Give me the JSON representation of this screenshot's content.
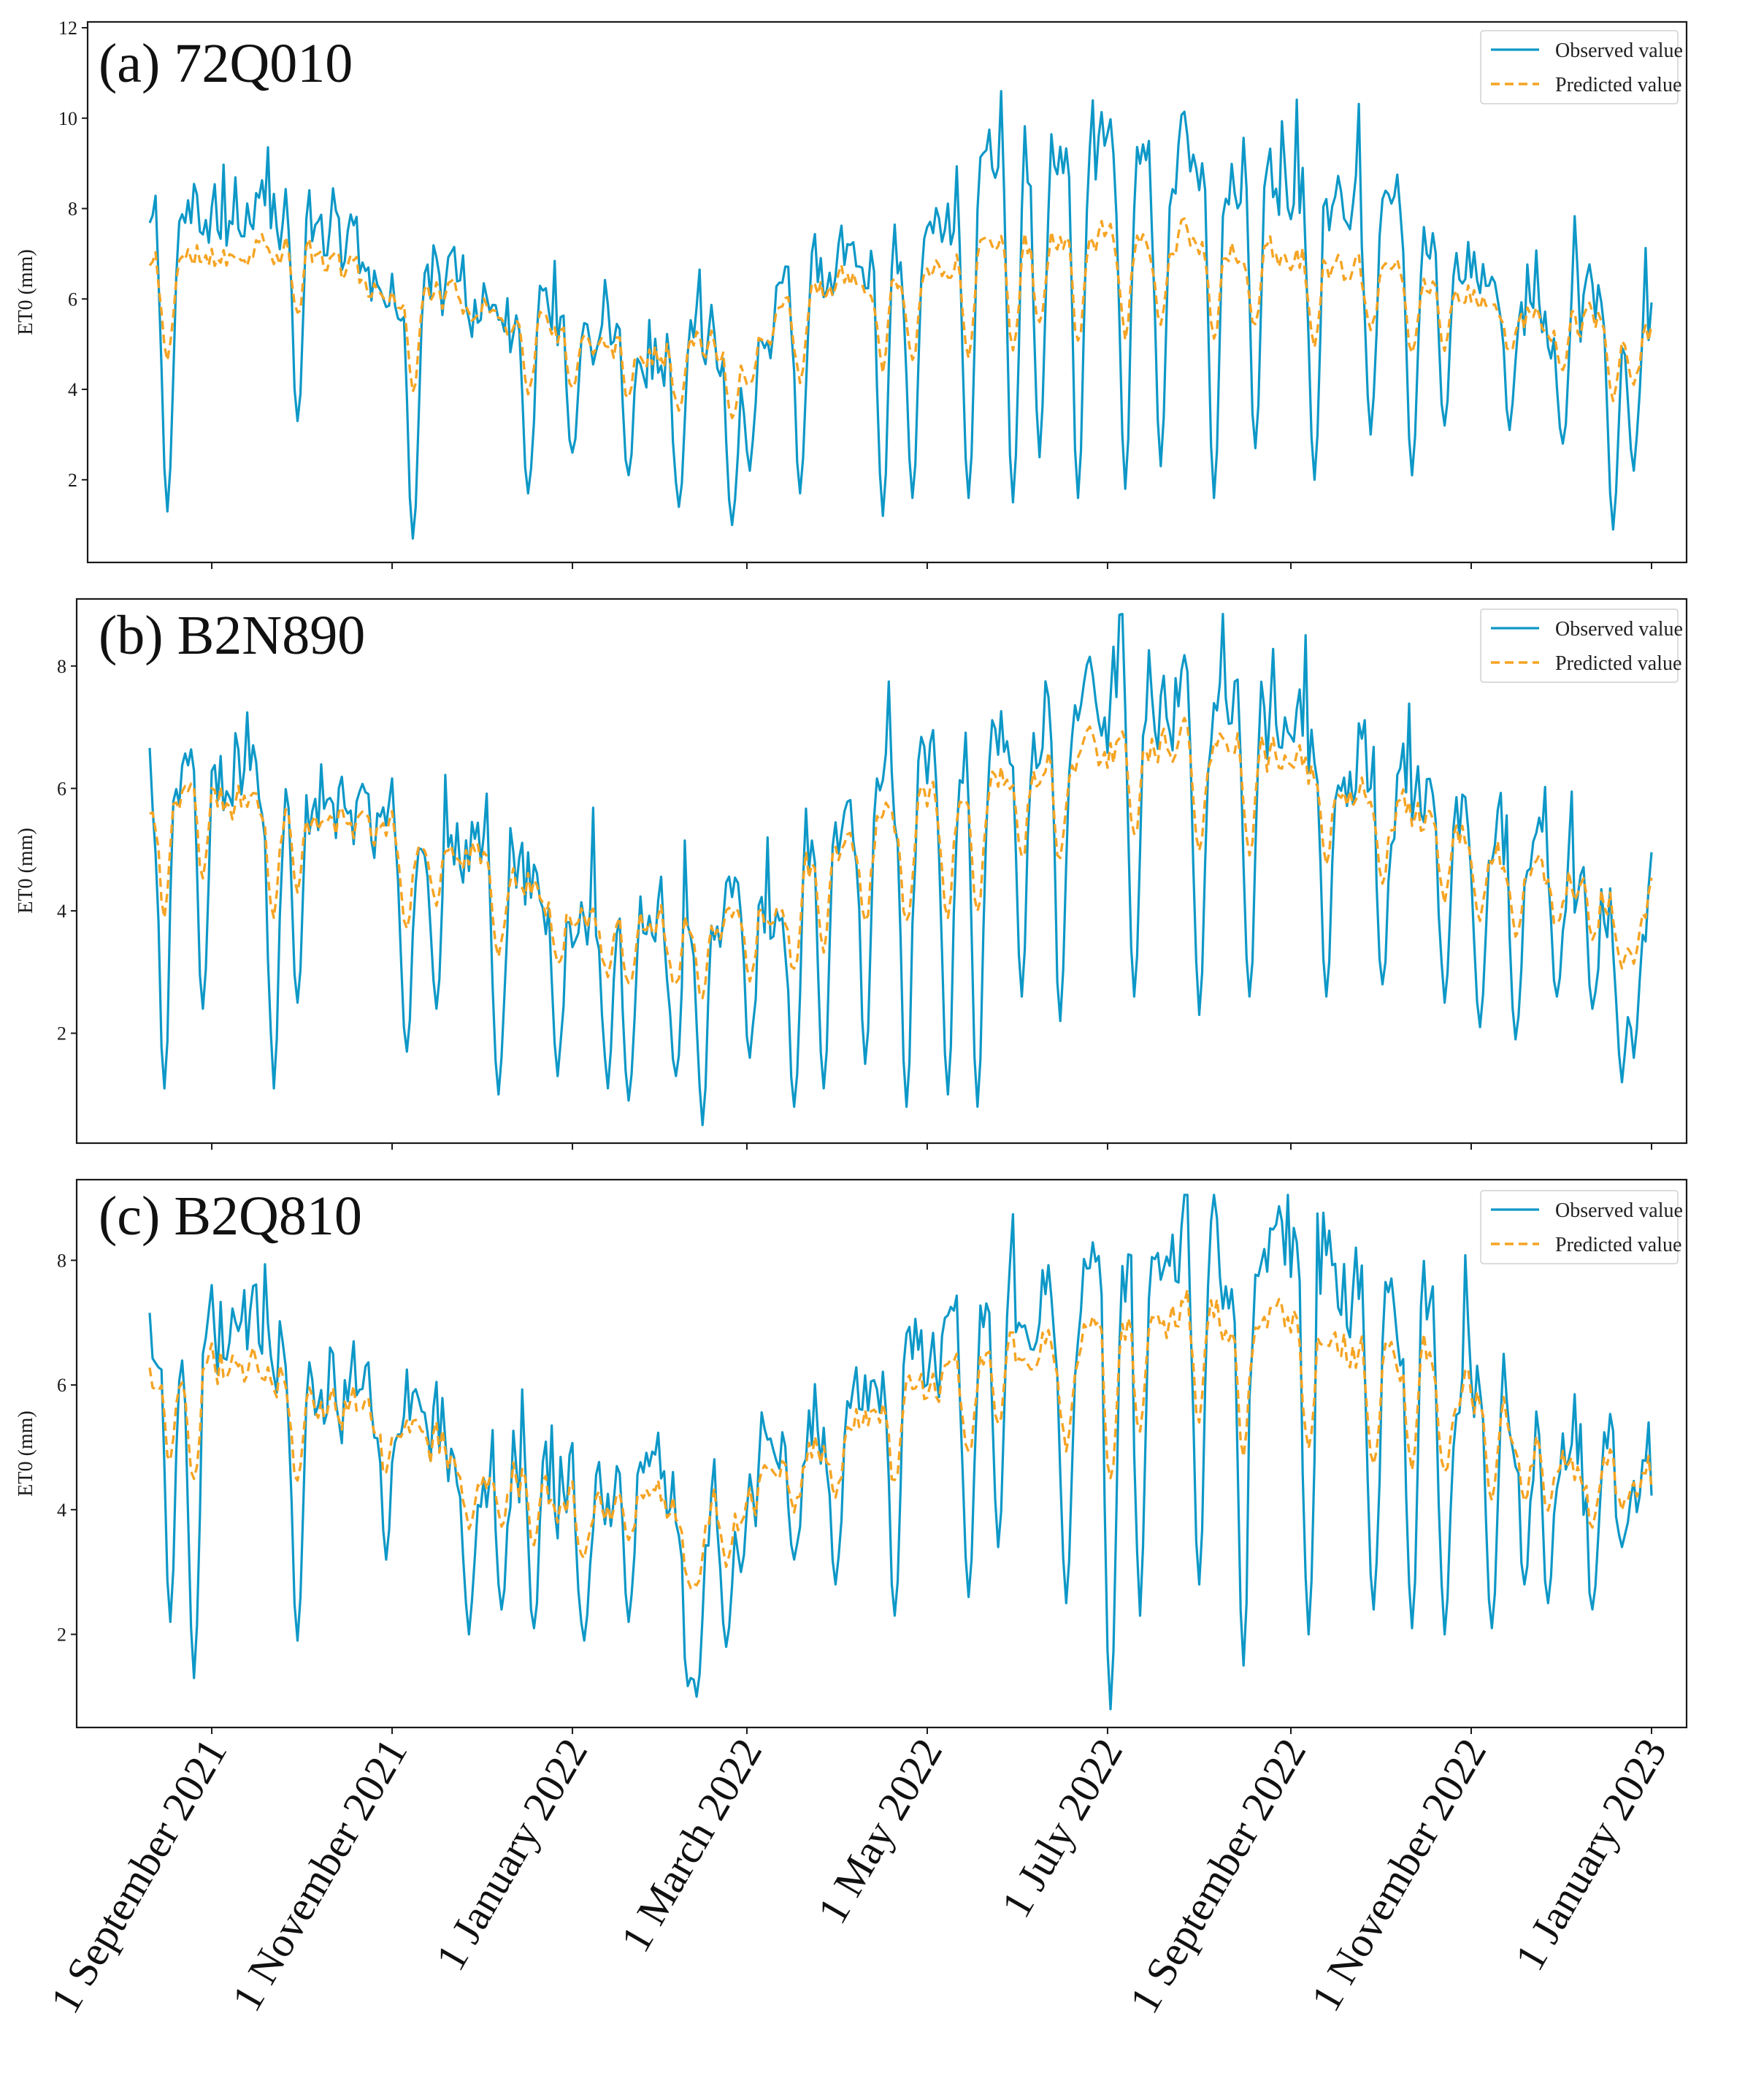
{
  "chart_data": [
    {
      "type": "line",
      "title": "(a) 72Q010",
      "ylabel": "ET0 (mm)",
      "ylim": [
        0.3,
        12.0
      ],
      "yticks": [
        2,
        4,
        6,
        8,
        10,
        12
      ],
      "ytick_labels": [
        "2",
        "4",
        "6",
        "8",
        "10",
        "12"
      ],
      "legend": [
        "Observed value",
        "Predicted value"
      ],
      "legend_position": "top-right",
      "x_range": [
        "2021-08-01",
        "2023-01-01"
      ],
      "series_names": [
        "Observed value",
        "Predicted value"
      ],
      "profile": {
        "obs_anchors": [
          [
            0,
            7.6
          ],
          [
            30,
            7.8
          ],
          [
            60,
            7.8
          ],
          [
            90,
            6.4
          ],
          [
            120,
            6.0
          ],
          [
            150,
            5.4
          ],
          [
            180,
            5.0
          ],
          [
            210,
            5.2
          ],
          [
            240,
            6.6
          ],
          [
            270,
            7.4
          ],
          [
            300,
            9.0
          ],
          [
            330,
            9.2
          ],
          [
            360,
            9.3
          ],
          [
            390,
            8.7
          ],
          [
            420,
            8.0
          ],
          [
            450,
            6.8
          ],
          [
            480,
            5.8
          ],
          [
            510,
            5.6
          ]
        ],
        "pred_anchors": [
          [
            0,
            6.6
          ],
          [
            30,
            7.0
          ],
          [
            60,
            7.1
          ],
          [
            90,
            6.2
          ],
          [
            120,
            5.9
          ],
          [
            150,
            5.2
          ],
          [
            180,
            4.9
          ],
          [
            210,
            5.0
          ],
          [
            240,
            6.3
          ],
          [
            270,
            6.6
          ],
          [
            300,
            7.2
          ],
          [
            330,
            7.3
          ],
          [
            360,
            7.4
          ],
          [
            390,
            7.1
          ],
          [
            420,
            6.6
          ],
          [
            450,
            6.1
          ],
          [
            480,
            5.6
          ],
          [
            510,
            5.3
          ]
        ],
        "dips": [
          [
            16,
            1.3
          ],
          [
            60,
            3.3
          ],
          [
            99,
            0.7
          ],
          [
            138,
            1.7
          ],
          [
            153,
            2.6
          ],
          [
            172,
            2.1
          ],
          [
            189,
            1.4
          ],
          [
            207,
            1.0
          ],
          [
            213,
            2.2
          ],
          [
            230,
            1.7
          ],
          [
            258,
            1.2
          ],
          [
            268,
            1.6
          ],
          [
            287,
            1.6
          ],
          [
            302,
            1.5
          ],
          [
            311,
            2.5
          ],
          [
            324,
            1.6
          ],
          [
            340,
            1.8
          ],
          [
            352,
            2.3
          ],
          [
            370,
            1.6
          ],
          [
            384,
            2.7
          ],
          [
            404,
            2.0
          ],
          [
            423,
            3.0
          ],
          [
            437,
            2.1
          ],
          [
            448,
            3.2
          ],
          [
            470,
            3.1
          ],
          [
            488,
            2.8
          ],
          [
            505,
            0.9
          ],
          [
            512,
            2.2
          ]
        ],
        "noise": 1.0,
        "seed": 11
      }
    },
    {
      "type": "line",
      "title": "(b) B2N890",
      "ylabel": "ET0 (mm)",
      "ylim": [
        0.3,
        9.0
      ],
      "yticks": [
        2,
        4,
        6,
        8
      ],
      "ytick_labels": [
        "2",
        "4",
        "6",
        "8"
      ],
      "legend": [
        "Observed value",
        "Predicted value"
      ],
      "legend_position": "top-right",
      "x_range": [
        "2021-08-01",
        "2023-01-01"
      ],
      "series_names": [
        "Observed value",
        "Predicted value"
      ],
      "profile": {
        "obs_anchors": [
          [
            0,
            6.2
          ],
          [
            30,
            6.2
          ],
          [
            60,
            5.9
          ],
          [
            90,
            5.4
          ],
          [
            120,
            5.0
          ],
          [
            150,
            4.2
          ],
          [
            180,
            3.9
          ],
          [
            210,
            3.8
          ],
          [
            240,
            5.4
          ],
          [
            270,
            6.1
          ],
          [
            300,
            6.9
          ],
          [
            330,
            7.2
          ],
          [
            360,
            7.4
          ],
          [
            390,
            7.0
          ],
          [
            420,
            6.2
          ],
          [
            450,
            5.6
          ],
          [
            480,
            4.6
          ],
          [
            510,
            4.2
          ]
        ],
        "pred_anchors": [
          [
            0,
            5.8
          ],
          [
            30,
            5.9
          ],
          [
            60,
            5.6
          ],
          [
            90,
            5.3
          ],
          [
            120,
            4.9
          ],
          [
            150,
            4.1
          ],
          [
            180,
            3.8
          ],
          [
            210,
            3.7
          ],
          [
            240,
            5.0
          ],
          [
            270,
            5.7
          ],
          [
            300,
            6.2
          ],
          [
            330,
            6.6
          ],
          [
            360,
            6.8
          ],
          [
            390,
            6.5
          ],
          [
            420,
            5.9
          ],
          [
            450,
            5.3
          ],
          [
            480,
            4.5
          ],
          [
            510,
            4.2
          ]
        ],
        "dips": [
          [
            15,
            1.1
          ],
          [
            28,
            2.4
          ],
          [
            52,
            1.1
          ],
          [
            60,
            2.5
          ],
          [
            97,
            1.7
          ],
          [
            107,
            2.4
          ],
          [
            128,
            1.0
          ],
          [
            148,
            1.3
          ],
          [
            165,
            1.1
          ],
          [
            172,
            0.9
          ],
          [
            188,
            1.3
          ],
          [
            197,
            0.5
          ],
          [
            213,
            1.6
          ],
          [
            228,
            0.8
          ],
          [
            238,
            1.1
          ],
          [
            252,
            1.5
          ],
          [
            266,
            0.8
          ],
          [
            280,
            1.0
          ],
          [
            290,
            0.8
          ],
          [
            305,
            2.6
          ],
          [
            318,
            2.2
          ],
          [
            343,
            2.6
          ],
          [
            365,
            2.3
          ],
          [
            382,
            2.6
          ],
          [
            408,
            2.6
          ],
          [
            427,
            2.8
          ],
          [
            448,
            2.5
          ],
          [
            460,
            2.1
          ],
          [
            472,
            1.9
          ],
          [
            486,
            2.6
          ],
          [
            498,
            2.4
          ],
          [
            508,
            1.2
          ],
          [
            512,
            1.6
          ]
        ],
        "noise": 0.9,
        "seed": 23
      }
    },
    {
      "type": "line",
      "title": "(c) B2Q810",
      "ylabel": "ET0 (mm)",
      "ylim": [
        0.6,
        9.2
      ],
      "yticks": [
        2,
        4,
        6,
        8
      ],
      "ytick_labels": [
        "2",
        "4",
        "6",
        "8"
      ],
      "legend": [
        "Observed value",
        "Predicted value"
      ],
      "legend_position": "top-right",
      "x_range": [
        "2021-08-01",
        "2023-01-01"
      ],
      "series_names": [
        "Observed value",
        "Predicted value"
      ],
      "profile": {
        "obs_anchors": [
          [
            0,
            7.2
          ],
          [
            30,
            7.0
          ],
          [
            60,
            6.6
          ],
          [
            90,
            5.6
          ],
          [
            120,
            5.0
          ],
          [
            150,
            4.5
          ],
          [
            180,
            4.2
          ],
          [
            210,
            4.2
          ],
          [
            240,
            5.2
          ],
          [
            270,
            6.5
          ],
          [
            300,
            7.2
          ],
          [
            330,
            7.6
          ],
          [
            360,
            8.2
          ],
          [
            390,
            8.0
          ],
          [
            420,
            7.3
          ],
          [
            450,
            6.6
          ],
          [
            480,
            5.0
          ],
          [
            510,
            4.6
          ]
        ],
        "pred_anchors": [
          [
            0,
            6.2
          ],
          [
            30,
            6.4
          ],
          [
            60,
            6.1
          ],
          [
            90,
            5.4
          ],
          [
            120,
            4.8
          ],
          [
            150,
            4.2
          ],
          [
            180,
            4.0
          ],
          [
            210,
            4.1
          ],
          [
            240,
            5.0
          ],
          [
            270,
            6.0
          ],
          [
            300,
            6.5
          ],
          [
            330,
            6.8
          ],
          [
            360,
            7.2
          ],
          [
            390,
            7.0
          ],
          [
            420,
            6.5
          ],
          [
            450,
            6.2
          ],
          [
            480,
            4.9
          ],
          [
            510,
            4.5
          ]
        ],
        "dips": [
          [
            5,
            3.3
          ],
          [
            17,
            2.2
          ],
          [
            25,
            1.3
          ],
          [
            60,
            1.9
          ],
          [
            90,
            3.2
          ],
          [
            118,
            2.0
          ],
          [
            129,
            2.4
          ],
          [
            140,
            2.1
          ],
          [
            157,
            1.9
          ],
          [
            172,
            2.2
          ],
          [
            192,
            1.2
          ],
          [
            195,
            1.0
          ],
          [
            205,
            1.8
          ],
          [
            210,
            3.0
          ],
          [
            228,
            3.2
          ],
          [
            242,
            2.8
          ],
          [
            262,
            2.3
          ],
          [
            287,
            2.6
          ],
          [
            297,
            3.4
          ],
          [
            320,
            2.5
          ],
          [
            335,
            0.8
          ],
          [
            345,
            2.3
          ],
          [
            365,
            2.8
          ],
          [
            380,
            1.5
          ],
          [
            402,
            2.0
          ],
          [
            424,
            2.4
          ],
          [
            437,
            2.1
          ],
          [
            448,
            2.0
          ],
          [
            464,
            2.1
          ],
          [
            475,
            2.8
          ],
          [
            483,
            2.5
          ],
          [
            498,
            2.4
          ],
          [
            508,
            3.4
          ]
        ],
        "noise": 1.0,
        "seed": 37
      }
    }
  ],
  "x_tick_labels": [
    "1 September 2021",
    "1 November 2021",
    "1 January 2022",
    "1 March 2022",
    "1 May 2022",
    "1 July 2022",
    "1 September 2022",
    "1 November 2022",
    "1 January 2023"
  ],
  "x_tick_days": [
    31,
    92,
    153,
    212,
    273,
    334,
    396,
    457,
    518
  ],
  "colors": {
    "observed": "#0d98c7",
    "predicted": "#f5a423",
    "frame": "#1a1a1a"
  }
}
